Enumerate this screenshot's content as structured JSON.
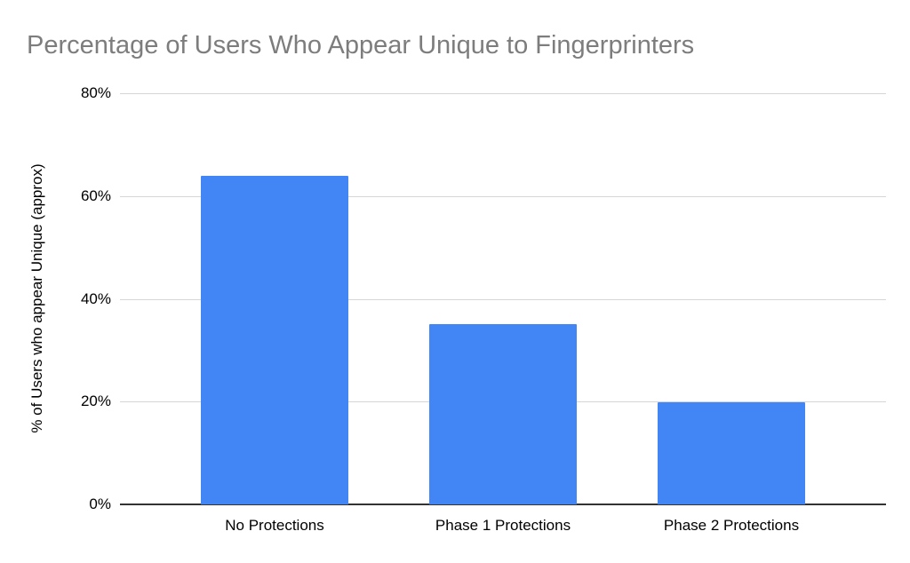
{
  "chart_data": {
    "type": "bar",
    "title": "Percentage of Users Who Appear Unique to Fingerprinters",
    "categories": [
      "No Protections",
      "Phase 1 Protections",
      "Phase 2 Protections"
    ],
    "values": [
      64,
      35,
      19.8
    ],
    "xlabel": "",
    "ylabel": "% of Users who appear Unique (approx)",
    "ylim": [
      0,
      80
    ],
    "ytick_values": [
      0,
      20,
      40,
      60,
      80
    ],
    "ytick_labels": [
      "0%",
      "20%",
      "40%",
      "60%",
      "80%"
    ],
    "grid": true,
    "legend_position": "none",
    "bar_color": "#4285f4",
    "title_color": "#7d7d7d",
    "gridline_color": "#d6d6d6",
    "axis_line_color": "#333333",
    "tick_label_color": "#000000",
    "background_color": "#ffffff"
  }
}
